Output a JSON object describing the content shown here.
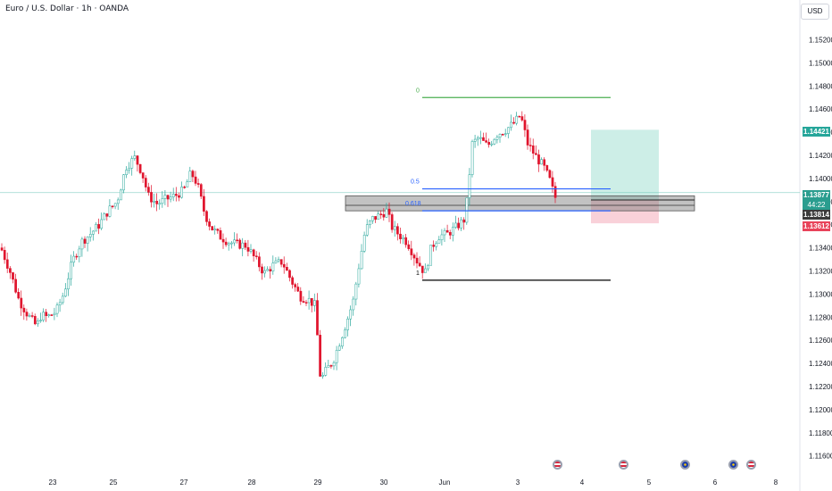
{
  "header": {
    "title": "Euro / U.S. Dollar · 1h · OANDA",
    "currency_button": "USD"
  },
  "price_tags": {
    "target": "1.14421",
    "current": "1.13877",
    "countdown": "44:22",
    "entry": "1.13814",
    "stop": "1.13612"
  },
  "colors": {
    "up": "#26a69a",
    "down": "#e0142d",
    "fib_top": "#4caf50",
    "fib_mid": "#2962ff",
    "fib_bottom": "#000000",
    "profit_zone": "#cdeee7",
    "loss_zone": "#f9d1d9",
    "current_price": "#2a9d8f",
    "entry_price": "#3b3b3b",
    "stop_price": "#e8435a",
    "target_price": "#26a69a"
  },
  "events": {
    "icons": [
      "us-flag-icon",
      "us-flag-icon",
      "eu-flag-icon",
      "eu-flag-icon",
      "us-flag-icon"
    ]
  },
  "chart_data": {
    "type": "candlestick",
    "symbol": "Euro / U.S. Dollar",
    "interval": "1h",
    "source": "OANDA",
    "currency": "USD",
    "ylim": [
      1.1158,
      1.1545
    ],
    "y_ticks": [
      "1.15200",
      "1.15000",
      "1.14800",
      "1.14600",
      "1.14400",
      "1.14200",
      "1.14000",
      "1.13800",
      "1.13600",
      "1.13400",
      "1.13200",
      "1.13000",
      "1.12800",
      "1.12600",
      "1.12400",
      "1.12200",
      "1.12000",
      "1.11800",
      "1.11600"
    ],
    "x_ticks": [
      "23",
      "25",
      "27",
      "28",
      "29",
      "30",
      "Jun",
      "3",
      "4",
      "5",
      "6",
      "8"
    ],
    "fib_levels": [
      {
        "label": "0",
        "price": 1.147
      },
      {
        "label": "0.5",
        "price": 1.1391
      },
      {
        "label": "0.618",
        "price": 1.1372
      },
      {
        "label": "1",
        "price": 1.1312
      }
    ],
    "support_zone": {
      "low": 1.1372,
      "high": 1.1385
    },
    "position": {
      "target": 1.14421,
      "entry": 1.13814,
      "stop": 1.13612
    },
    "current_price": 1.13877,
    "price_path": [
      [
        0,
        1.134
      ],
      [
        10,
        1.132
      ],
      [
        20,
        1.1295
      ],
      [
        30,
        1.1282
      ],
      [
        40,
        1.1272
      ],
      [
        45,
        1.1282
      ],
      [
        52,
        1.128
      ],
      [
        62,
        1.1285
      ],
      [
        70,
        1.13
      ],
      [
        80,
        1.1328
      ],
      [
        90,
        1.1345
      ],
      [
        100,
        1.1352
      ],
      [
        110,
        1.136
      ],
      [
        120,
        1.1372
      ],
      [
        130,
        1.138
      ],
      [
        140,
        1.141
      ],
      [
        150,
        1.1418
      ],
      [
        158,
        1.1405
      ],
      [
        165,
        1.1385
      ],
      [
        175,
        1.1378
      ],
      [
        185,
        1.1382
      ],
      [
        195,
        1.1385
      ],
      [
        205,
        1.139
      ],
      [
        213,
        1.1405
      ],
      [
        220,
        1.1395
      ],
      [
        228,
        1.137
      ],
      [
        235,
        1.1358
      ],
      [
        245,
        1.135
      ],
      [
        255,
        1.1345
      ],
      [
        265,
        1.1343
      ],
      [
        275,
        1.1342
      ],
      [
        285,
        1.133
      ],
      [
        295,
        1.1318
      ],
      [
        305,
        1.1325
      ],
      [
        315,
        1.1328
      ],
      [
        325,
        1.1312
      ],
      [
        335,
        1.1298
      ],
      [
        345,
        1.1295
      ],
      [
        352,
        1.129
      ],
      [
        358,
        1.1225
      ],
      [
        365,
        1.1235
      ],
      [
        372,
        1.1242
      ],
      [
        380,
        1.126
      ],
      [
        388,
        1.1278
      ],
      [
        395,
        1.1295
      ],
      [
        400,
        1.132
      ],
      [
        408,
        1.1355
      ],
      [
        416,
        1.1365
      ],
      [
        424,
        1.1368
      ],
      [
        432,
        1.1372
      ],
      [
        438,
        1.1358
      ],
      [
        445,
        1.1352
      ],
      [
        455,
        1.1345
      ],
      [
        465,
        1.133
      ],
      [
        475,
        1.1318
      ],
      [
        482,
        1.134
      ],
      [
        490,
        1.135
      ],
      [
        500,
        1.1352
      ],
      [
        510,
        1.1358
      ],
      [
        520,
        1.1365
      ],
      [
        528,
        1.143
      ],
      [
        535,
        1.1435
      ],
      [
        545,
        1.1428
      ],
      [
        555,
        1.1438
      ],
      [
        565,
        1.1442
      ],
      [
        575,
        1.1448
      ],
      [
        582,
        1.1455
      ],
      [
        590,
        1.143
      ],
      [
        600,
        1.1418
      ],
      [
        608,
        1.141
      ],
      [
        615,
        1.1398
      ],
      [
        620,
        1.1385
      ],
      [
        623,
        1.1381
      ]
    ]
  }
}
